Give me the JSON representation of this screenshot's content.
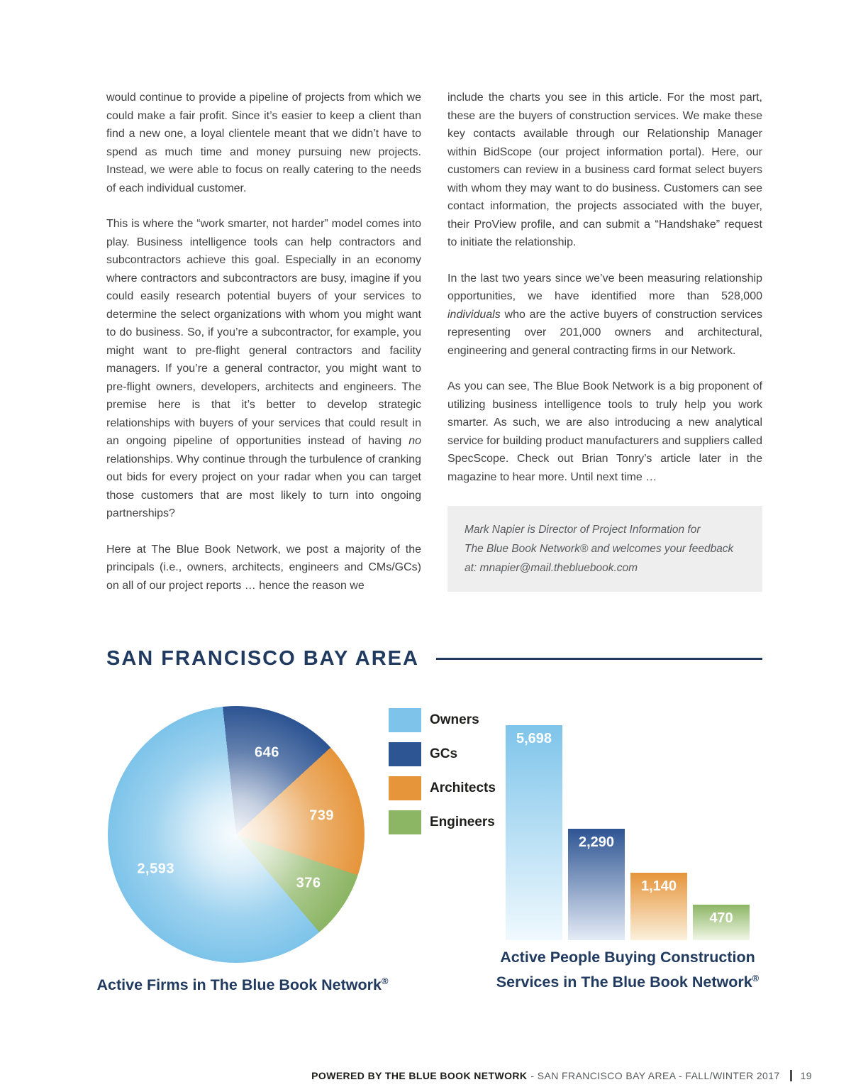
{
  "article": {
    "left_column": {
      "p1": "would continue to provide a pipeline of projects from which we could make a fair profit. Since it’s easier to keep a client than find a new one, a loyal clientele meant that we didn’t have to spend as much time and money pursuing new projects. Instead, we were able to focus on really catering to the needs of each individual customer.",
      "p2_pre": "This is where the “work smarter, not harder” model comes into play. Business intelligence tools can help contractors and subcontractors achieve this goal. Especially in an economy where contractors and subcontractors are busy, imagine if you could easily research potential buyers of your services to determine the select organizations with whom you might want to do business.  So, if you’re a subcontractor, for example, you might want to pre-flight general contractors and facility managers. If you’re a general contractor, you might want to pre-flight owners, developers, architects and engineers. The premise here is that it’s better to develop strategic relationships with buyers of your services that could result in an ongoing pipeline of opportunities instead of having ",
      "p2_em": "no",
      "p2_post": " relationships. Why continue through the turbulence of cranking out bids for every project on your radar when you can target those customers that are most likely to turn into ongoing partnerships?",
      "p3": "Here at The Blue Book Network, we post a majority of the principals (i.e., owners, architects, engineers and CMs/GCs) on all of our project reports … hence the reason we"
    },
    "right_column": {
      "p1": "include the charts you see in this article. For the most part, these are the buyers of construction services. We make these key contacts available through our Relationship Manager within BidScope (our project information portal). Here, our customers can review in a business card format select buyers with whom they may want to do business. Customers can see contact information, the projects associated with the buyer, their ProView profile, and can submit a “Handshake” request to initiate the relationship.",
      "p2_pre": "In the last two years since we’ve been measuring relationship opportunities, we have identified more than 528,000 ",
      "p2_em": "individuals",
      "p2_post": " who are the active buyers of construction services representing over 201,000 owners and architectural, engineering and general contracting firms in our Network.",
      "p3": "As you can see, The Blue Book Network is a big proponent of utilizing business intelligence tools to truly help you work smarter. As such, we are also introducing a new analytical service for building product manufacturers and suppliers called SpecScope. Check out Brian Tonry’s article later in the magazine to hear more.  Until next time …"
    },
    "bio": {
      "line1": "Mark Napier is Director of Project Information for",
      "line2": "The Blue Book Network® and welcomes your feedback",
      "line3": "at: mnapier@mail.thebluebook.com"
    }
  },
  "section": {
    "title": "SAN FRANCISCO BAY AREA"
  },
  "chart_data": [
    {
      "type": "pie",
      "title": "Active Firms in The Blue Book Network®",
      "categories": [
        "Owners",
        "GCs",
        "Architects",
        "Engineers"
      ],
      "values": [
        2593,
        646,
        739,
        376
      ],
      "labels": [
        "2,593",
        "646",
        "739",
        "376"
      ],
      "colors": [
        "#7EC4EA",
        "#2E5593",
        "#E6953B",
        "#8CB564"
      ],
      "draw_order": [
        1,
        2,
        3,
        0
      ],
      "start_angle": -6,
      "legend_position": "right of pie"
    },
    {
      "type": "bar",
      "title": "Active People Buying Construction Services in The Blue Book Network®",
      "categories": [
        "Owners",
        "GCs",
        "Architects",
        "Engineers"
      ],
      "values": [
        5698,
        2290,
        1140,
        470
      ],
      "labels": [
        "5,698",
        "2,290",
        "1,140",
        "470"
      ],
      "colors": [
        "#7EC4EA",
        "#2E5593",
        "#E6953B",
        "#8CB564"
      ],
      "fade_colors": [
        "#F0F9FE",
        "#E4EBF6",
        "#FBF0DC",
        "#F0F6E6"
      ],
      "ylim": [
        0,
        5698
      ],
      "grid": false
    }
  ],
  "captions": {
    "pie": {
      "text": "Active Firms in The Blue Book Network",
      "reg": "®"
    },
    "bar_line1": "Active People Buying Construction",
    "bar_line2": {
      "text": "Services in The Blue Book Network",
      "reg": "®"
    }
  },
  "footer": {
    "bold": "POWERED BY THE BLUE BOOK NETWORK",
    "rest": "- SAN FRANCISCO BAY AREA - FALL/WINTER 2017",
    "page": "19"
  }
}
